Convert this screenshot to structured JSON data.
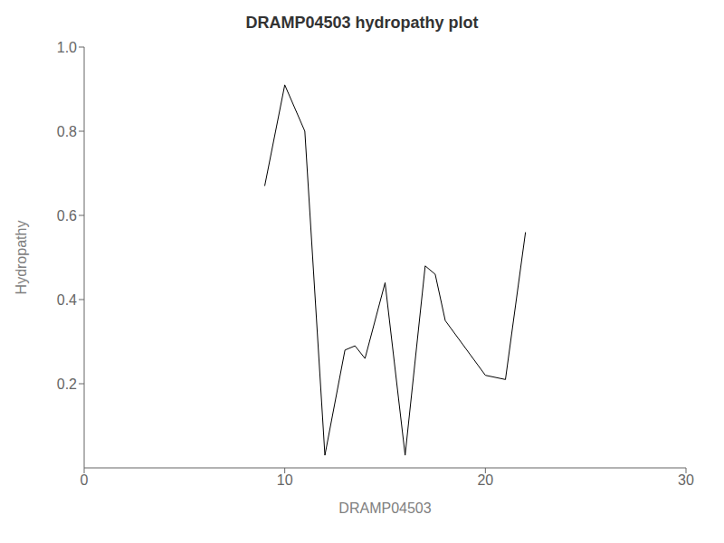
{
  "chart_data": {
    "type": "line",
    "title": "DRAMP04503 hydropathy plot",
    "x_label": "DRAMP04503",
    "y_label": "Hydropathy",
    "x": [
      9,
      10,
      11,
      12,
      13,
      13.5,
      14,
      15,
      16,
      17,
      17.5,
      18,
      20,
      21,
      22
    ],
    "values": [
      0.67,
      0.91,
      0.8,
      0.03,
      0.28,
      0.29,
      0.26,
      0.44,
      0.03,
      0.48,
      0.46,
      0.35,
      0.22,
      0.21,
      0.56
    ],
    "color": "#000000",
    "xlim": [
      0,
      30
    ],
    "ylim": [
      0,
      1.0
    ],
    "xticks": [
      0,
      10,
      20,
      30
    ],
    "yticks": [
      0.2,
      0.4,
      0.6,
      0.8,
      {
        "value": 1.0,
        "label": "1.0"
      }
    ],
    "grid": false
  }
}
